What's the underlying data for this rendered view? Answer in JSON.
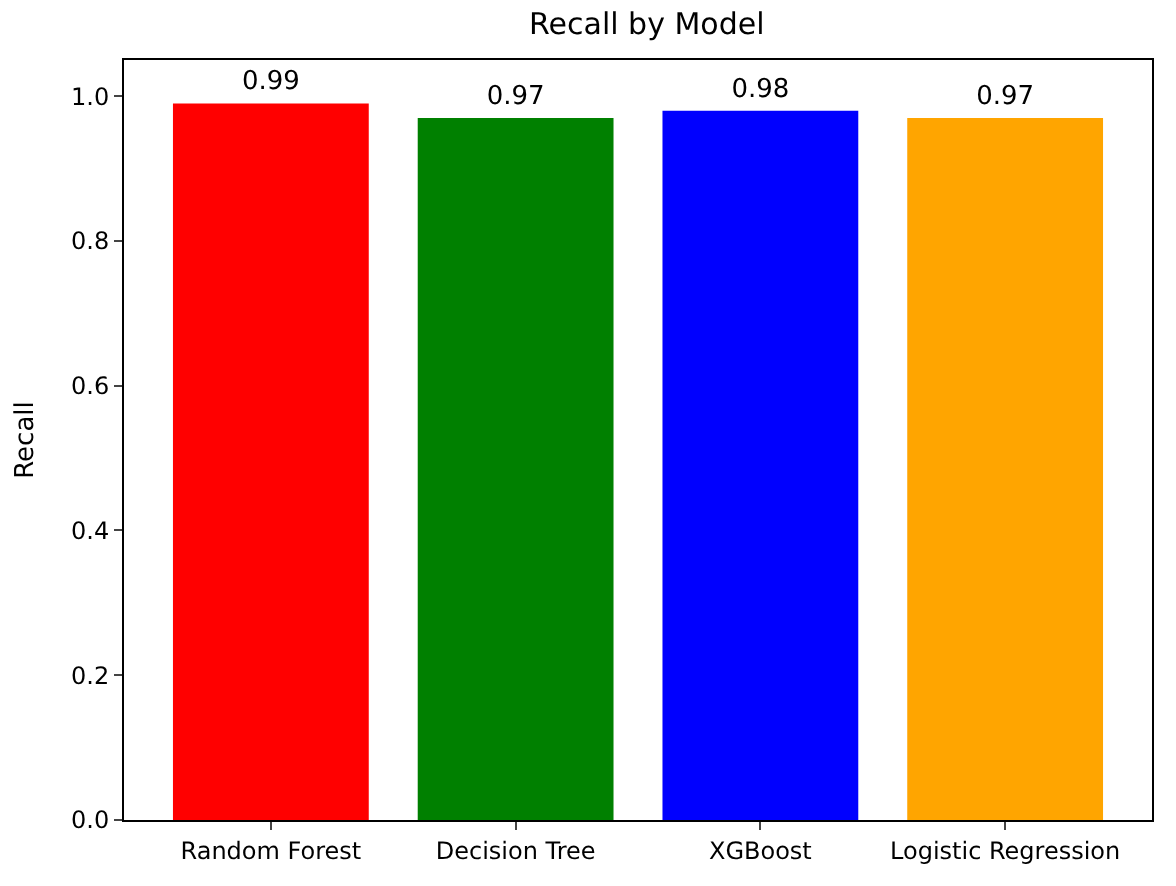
{
  "chart_data": {
    "type": "bar",
    "title": "Recall by Model",
    "ylabel": "Recall",
    "categories": [
      "Random Forest",
      "Decision Tree",
      "XGBoost",
      "Logistic Regression"
    ],
    "values": [
      0.99,
      0.97,
      0.98,
      0.97
    ],
    "colors": [
      "#ff0000",
      "#008000",
      "#0000ff",
      "#ffa500"
    ],
    "ylim": [
      0,
      1.05
    ],
    "yticks": [
      {
        "value": 0,
        "label": "0.0"
      },
      0.2,
      0.4,
      0.6,
      0.8,
      {
        "value": 1,
        "label": "1.0"
      }
    ],
    "data_labels": true
  }
}
